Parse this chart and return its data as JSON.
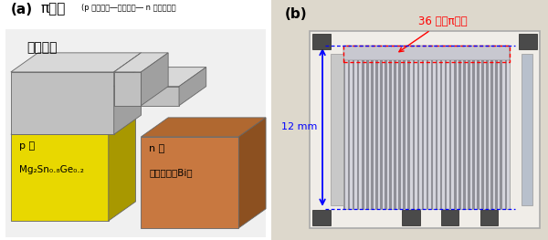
{
  "fig_width": 6.0,
  "fig_height": 2.63,
  "dpi": 100,
  "bg_color": "#ffffff",
  "panel_a_label": "(a)",
  "panel_a_title": "π接合",
  "panel_a_subtitle": "(p 型半導体―金属電極― n 型半導体）",
  "metal_label": "金属電極",
  "p_label_line1": "p 型",
  "p_label_line2": "Mg₂Sn₀.₈Ge₀.₂",
  "n_label_line1": "n 型",
  "n_label_line2": "ビスマス（Bi）",
  "panel_b_label": "(b)",
  "b_annotation": "36 個のπ接合",
  "b_dim_label": "12 mm",
  "metal_color_front": "#c0c0c0",
  "metal_color_top": "#d8d8d8",
  "metal_color_side": "#a0a0a0",
  "p_color_front": "#e8d800",
  "p_color_top": "#c8ba00",
  "p_color_side": "#a89800",
  "n_color_front": "#c87840",
  "n_color_top": "#b06830",
  "n_color_side": "#8c5020",
  "annotation_color": "#ff0000",
  "arrow_color": "#0000ff",
  "title_fontsize": 11,
  "label_fontsize": 9,
  "small_fontsize": 7,
  "a_bg": "#f0f0f0",
  "b_bg": "#e8e0d0"
}
